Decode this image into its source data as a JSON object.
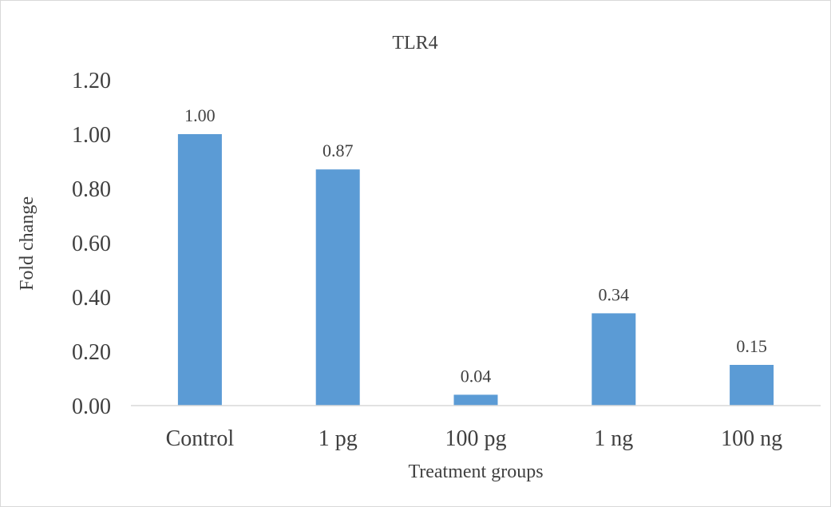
{
  "chart_data": {
    "type": "bar",
    "title": "TLR4",
    "xlabel": "Treatment groups",
    "ylabel": "Fold change",
    "categories": [
      "Control",
      "1 pg",
      "100 pg",
      "1 ng",
      "100 ng"
    ],
    "values": [
      1.0,
      0.87,
      0.04,
      0.34,
      0.15
    ],
    "data_labels": [
      "1.00",
      "0.87",
      "0.04",
      "0.34",
      "0.15"
    ],
    "yticks": [
      "0.00",
      "0.20",
      "0.40",
      "0.60",
      "0.80",
      "1.00",
      "1.20"
    ],
    "ylim": [
      0,
      1.2
    ],
    "grid": false,
    "legend": "none",
    "bar_color": "#5b9bd5"
  }
}
